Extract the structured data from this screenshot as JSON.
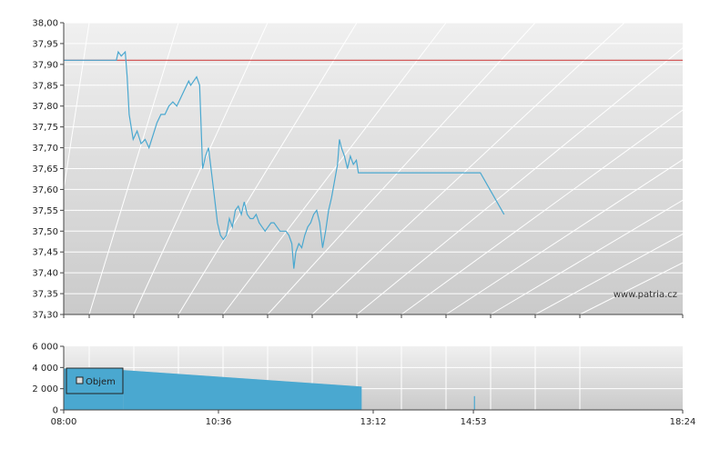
{
  "charts": {
    "price": {
      "type": "line",
      "watermark": "www.patria.cz",
      "ylim": [
        37.3,
        38.0
      ],
      "y_ticks": [
        "38,00",
        "37,95",
        "37,90",
        "37,85",
        "37,80",
        "37,75",
        "37,70",
        "37,65",
        "37,60",
        "37,55",
        "37,50",
        "37,45",
        "37,40",
        "37,35",
        "37,30"
      ],
      "reference_line": {
        "value": 37.91,
        "color": "#cc3333"
      },
      "colors": {
        "line": "#4aa8d0",
        "plot_top": "#f0f0f0",
        "plot_bottom": "#cacaca"
      }
    },
    "volume": {
      "type": "bar",
      "ylim": [
        0,
        6000
      ],
      "y_ticks": [
        "6 000",
        "4 000",
        "2 000",
        "0"
      ],
      "legend": "Objem",
      "colors": {
        "bar": "#4aa8d0"
      }
    },
    "x_ticks": [
      "08:00",
      "10:36",
      "13:12",
      "14:53",
      "18:24"
    ]
  },
  "chart_data": [
    {
      "type": "line",
      "name": "price",
      "x_unit": "minutes since 08:00",
      "ylim": [
        37.3,
        38.0
      ],
      "points": [
        [
          0,
          37.91
        ],
        [
          53,
          37.91
        ],
        [
          55,
          37.93
        ],
        [
          58,
          37.92
        ],
        [
          62,
          37.93
        ],
        [
          64,
          37.87
        ],
        [
          66,
          37.78
        ],
        [
          70,
          37.72
        ],
        [
          74,
          37.74
        ],
        [
          78,
          37.71
        ],
        [
          82,
          37.72
        ],
        [
          86,
          37.7
        ],
        [
          90,
          37.73
        ],
        [
          94,
          37.76
        ],
        [
          98,
          37.78
        ],
        [
          102,
          37.78
        ],
        [
          106,
          37.8
        ],
        [
          110,
          37.81
        ],
        [
          114,
          37.8
        ],
        [
          118,
          37.82
        ],
        [
          122,
          37.84
        ],
        [
          126,
          37.86
        ],
        [
          128,
          37.85
        ],
        [
          131,
          37.86
        ],
        [
          134,
          37.87
        ],
        [
          137,
          37.85
        ],
        [
          140,
          37.65
        ],
        [
          143,
          37.68
        ],
        [
          146,
          37.7
        ],
        [
          148,
          37.66
        ],
        [
          151,
          37.6
        ],
        [
          155,
          37.52
        ],
        [
          158,
          37.49
        ],
        [
          161,
          37.48
        ],
        [
          164,
          37.49
        ],
        [
          167,
          37.53
        ],
        [
          170,
          37.51
        ],
        [
          173,
          37.55
        ],
        [
          176,
          37.56
        ],
        [
          179,
          37.54
        ],
        [
          182,
          37.57
        ],
        [
          185,
          37.54
        ],
        [
          188,
          37.53
        ],
        [
          191,
          37.53
        ],
        [
          194,
          37.54
        ],
        [
          197,
          37.52
        ],
        [
          200,
          37.51
        ],
        [
          203,
          37.5
        ],
        [
          206,
          37.51
        ],
        [
          209,
          37.52
        ],
        [
          212,
          37.52
        ],
        [
          215,
          37.51
        ],
        [
          218,
          37.5
        ],
        [
          221,
          37.5
        ],
        [
          224,
          37.5
        ],
        [
          227,
          37.49
        ],
        [
          230,
          37.47
        ],
        [
          232,
          37.41
        ],
        [
          234,
          37.45
        ],
        [
          237,
          37.47
        ],
        [
          240,
          37.46
        ],
        [
          243,
          37.49
        ],
        [
          246,
          37.51
        ],
        [
          249,
          37.52
        ],
        [
          252,
          37.54
        ],
        [
          255,
          37.55
        ],
        [
          258,
          37.52
        ],
        [
          261,
          37.46
        ],
        [
          264,
          37.5
        ],
        [
          267,
          37.55
        ],
        [
          270,
          37.58
        ],
        [
          273,
          37.62
        ],
        [
          276,
          37.66
        ],
        [
          278,
          37.72
        ],
        [
          280,
          37.7
        ],
        [
          283,
          37.68
        ],
        [
          286,
          37.65
        ],
        [
          289,
          37.68
        ],
        [
          292,
          37.66
        ],
        [
          295,
          37.67
        ],
        [
          297,
          37.64
        ],
        [
          300,
          37.64
        ],
        [
          420,
          37.64
        ],
        [
          444,
          37.54
        ]
      ]
    },
    {
      "type": "bar",
      "name": "volume",
      "x_unit": "minutes since 08:00",
      "ylim": [
        0,
        6000
      ],
      "segments": [
        {
          "from": 0,
          "to": 60,
          "value": 3900
        },
        {
          "from": 60,
          "to": 300,
          "value_start": 3750,
          "value_end": 2200
        }
      ],
      "spikes": [
        {
          "x": 414,
          "value": 1300
        }
      ]
    }
  ]
}
